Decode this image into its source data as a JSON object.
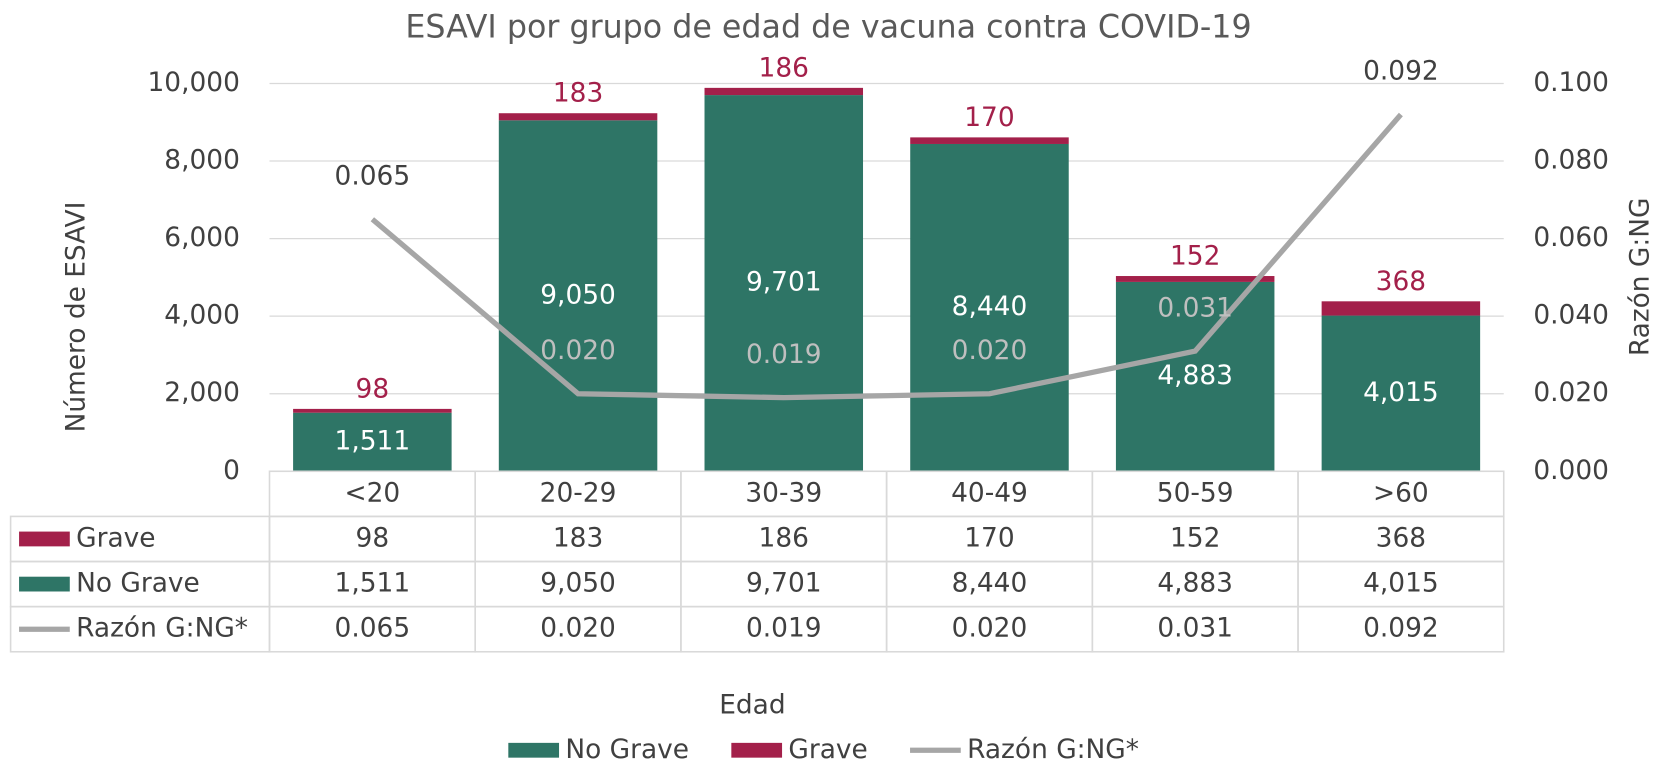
{
  "chart_data": {
    "type": "bar",
    "stacked": true,
    "title": "ESAVI por grupo de edad de vacuna contra COVID-19",
    "x_label": "Edad",
    "y_label": "Número de ESAVI",
    "y2_label": "Razón G:NG",
    "categories": [
      "<20",
      "20-29",
      "30-39",
      "40-49",
      "50-59",
      ">60"
    ],
    "series": [
      {
        "name": "No Grave",
        "color": "#2e7566",
        "values": [
          1511,
          9050,
          9701,
          8440,
          4883,
          4015
        ],
        "value_labels": [
          "1,511",
          "9,050",
          "9,701",
          "8,440",
          "4,883",
          "4,015"
        ]
      },
      {
        "name": "Grave",
        "color": "#a3204a",
        "values": [
          98,
          183,
          186,
          170,
          152,
          368
        ]
      },
      {
        "name": "Razón G:NG*",
        "type": "line",
        "axis": "y2",
        "color": "#a6a6a6",
        "values": [
          0.065,
          0.02,
          0.019,
          0.02,
          0.031,
          0.092
        ],
        "value_labels": [
          "0.065",
          "0.020",
          "0.019",
          "0.020",
          "0.031",
          "0.092"
        ]
      }
    ],
    "ylim": [
      0,
      10000
    ],
    "yticks": [
      0,
      {
        "value": 2000,
        "label": "2,000"
      },
      {
        "value": 4000,
        "label": "4,000"
      },
      {
        "value": 6000,
        "label": "6,000"
      },
      {
        "value": 8000,
        "label": "8,000"
      },
      {
        "value": 10000,
        "label": "10,000"
      }
    ],
    "y2lim": [
      0,
      0.1
    ],
    "y2ticks": [
      {
        "value": 0,
        "label": "0.000"
      },
      {
        "value": 0.02,
        "label": "0.020"
      },
      {
        "value": 0.04,
        "label": "0.040"
      },
      {
        "value": 0.06,
        "label": "0.060"
      },
      {
        "value": 0.08,
        "label": "0.080"
      },
      {
        "value": 0.1,
        "label": "0.100"
      }
    ],
    "grid": true,
    "data_table": true,
    "legend": "bottom"
  }
}
